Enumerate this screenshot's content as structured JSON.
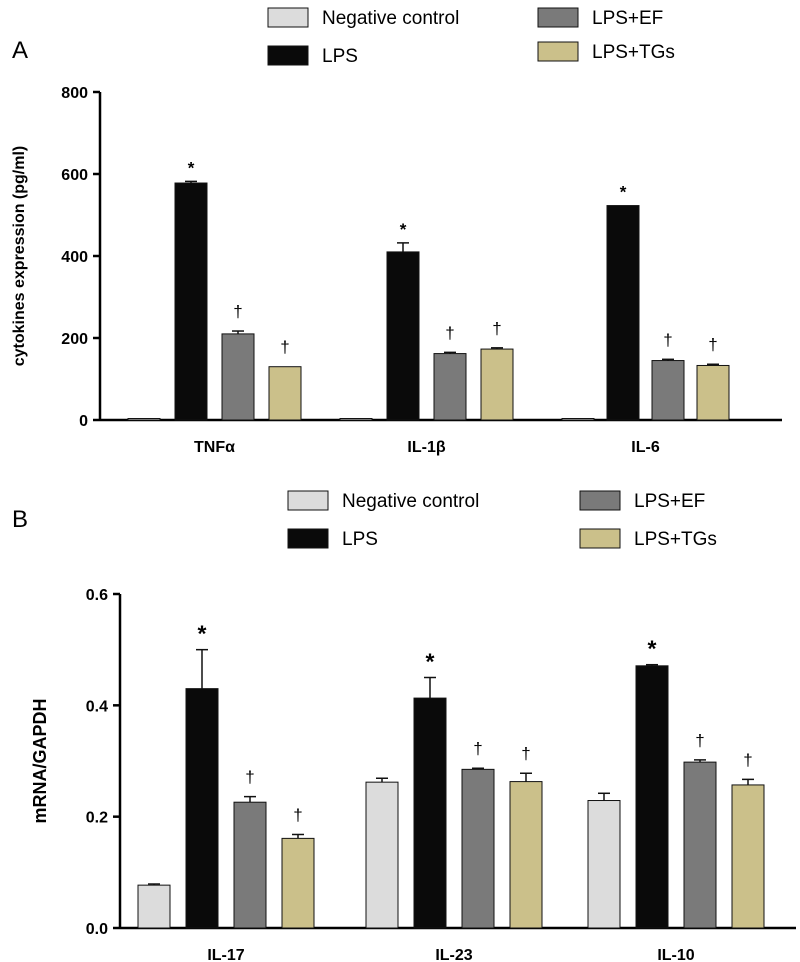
{
  "chart_data": [
    {
      "type": "bar",
      "panel_label": "A",
      "title": "",
      "xlabel": "",
      "ylabel": "cytokines expression (pg/ml)",
      "ylim": [
        0,
        800
      ],
      "yticks": [
        0,
        200,
        400,
        600,
        800
      ],
      "categories": [
        "TNFα",
        "IL-1β",
        "IL-6"
      ],
      "legend": [
        "Negative control",
        "LPS",
        "LPS+EF",
        "LPS+TGs"
      ],
      "series": [
        {
          "name": "Negative control",
          "color": "#dcdcdc",
          "values": [
            3,
            3,
            3
          ],
          "errors": [
            0,
            0,
            0
          ],
          "marks": [
            "",
            "",
            ""
          ]
        },
        {
          "name": "LPS",
          "color": "#0a0a0a",
          "values": [
            578,
            410,
            523
          ],
          "errors": [
            4,
            22,
            0
          ],
          "marks": [
            "*",
            "*",
            "*"
          ]
        },
        {
          "name": "LPS+EF",
          "color": "#7a7a7a",
          "values": [
            210,
            162,
            145
          ],
          "errors": [
            7,
            3,
            3
          ],
          "marks": [
            "†",
            "†",
            "†"
          ]
        },
        {
          "name": "LPS+TGs",
          "color": "#cbc08a",
          "values": [
            130,
            173,
            133
          ],
          "errors": [
            0,
            3,
            3
          ],
          "marks": [
            "†",
            "†",
            "†"
          ]
        }
      ]
    },
    {
      "type": "bar",
      "panel_label": "B",
      "title": "",
      "xlabel": "",
      "ylabel": "mRNA/GAPDH",
      "ylim": [
        0,
        0.6
      ],
      "yticks": [
        "0.0",
        "0.2",
        "0.4",
        "0.6"
      ],
      "categories": [
        "IL-17",
        "IL-23",
        "IL-10"
      ],
      "legend": [
        "Negative control",
        "LPS",
        "LPS+EF",
        "LPS+TGs"
      ],
      "series": [
        {
          "name": "Negative control",
          "color": "#dcdcdc",
          "values": [
            0.077,
            0.262,
            0.229
          ],
          "errors": [
            0.002,
            0.007,
            0.013
          ],
          "marks": [
            "",
            "",
            ""
          ]
        },
        {
          "name": "LPS",
          "color": "#0a0a0a",
          "values": [
            0.43,
            0.413,
            0.471
          ],
          "errors": [
            0.07,
            0.037,
            0.002
          ],
          "marks": [
            "*",
            "*",
            "*"
          ]
        },
        {
          "name": "LPS+EF",
          "color": "#7a7a7a",
          "values": [
            0.226,
            0.285,
            0.298
          ],
          "errors": [
            0.01,
            0.002,
            0.004
          ],
          "marks": [
            "†",
            "†",
            "†"
          ]
        },
        {
          "name": "LPS+TGs",
          "color": "#cbc08a",
          "values": [
            0.161,
            0.263,
            0.257
          ],
          "errors": [
            0.007,
            0.015,
            0.01
          ],
          "marks": [
            "†",
            "†",
            "†"
          ]
        }
      ]
    }
  ]
}
